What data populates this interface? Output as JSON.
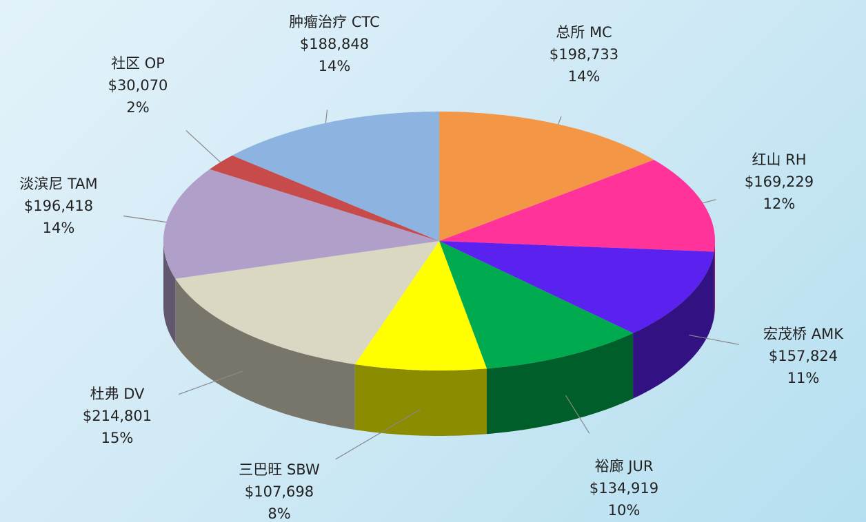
{
  "chart_data": {
    "type": "pie3d",
    "categories": [
      "总所 MC",
      "红山 RH",
      "宏茂桥 AMK",
      "裕廊 JUR",
      "三巴旺 SBW",
      "杜弗 DV",
      "淡滨尼 TAM",
      "社区 OP",
      "肿瘤治疗 CTC"
    ],
    "values": [
      198733,
      169229,
      157824,
      134919,
      107698,
      214801,
      196418,
      30070,
      188848
    ],
    "value_labels": [
      "$198,733",
      "$169,229",
      "$157,824",
      "$134,919",
      "$107,698",
      "$214,801",
      "$196,418",
      "$30,070",
      "$188,848"
    ],
    "percent_labels": [
      "14%",
      "12%",
      "11%",
      "10%",
      "8%",
      "15%",
      "14%",
      "2%",
      "14%"
    ],
    "colors": [
      "#f39646",
      "#ff3399",
      "#5b21ee",
      "#00aa4f",
      "#ffff00",
      "#dad7c3",
      "#b09fc8",
      "#c84b4b",
      "#8db3e0"
    ]
  }
}
